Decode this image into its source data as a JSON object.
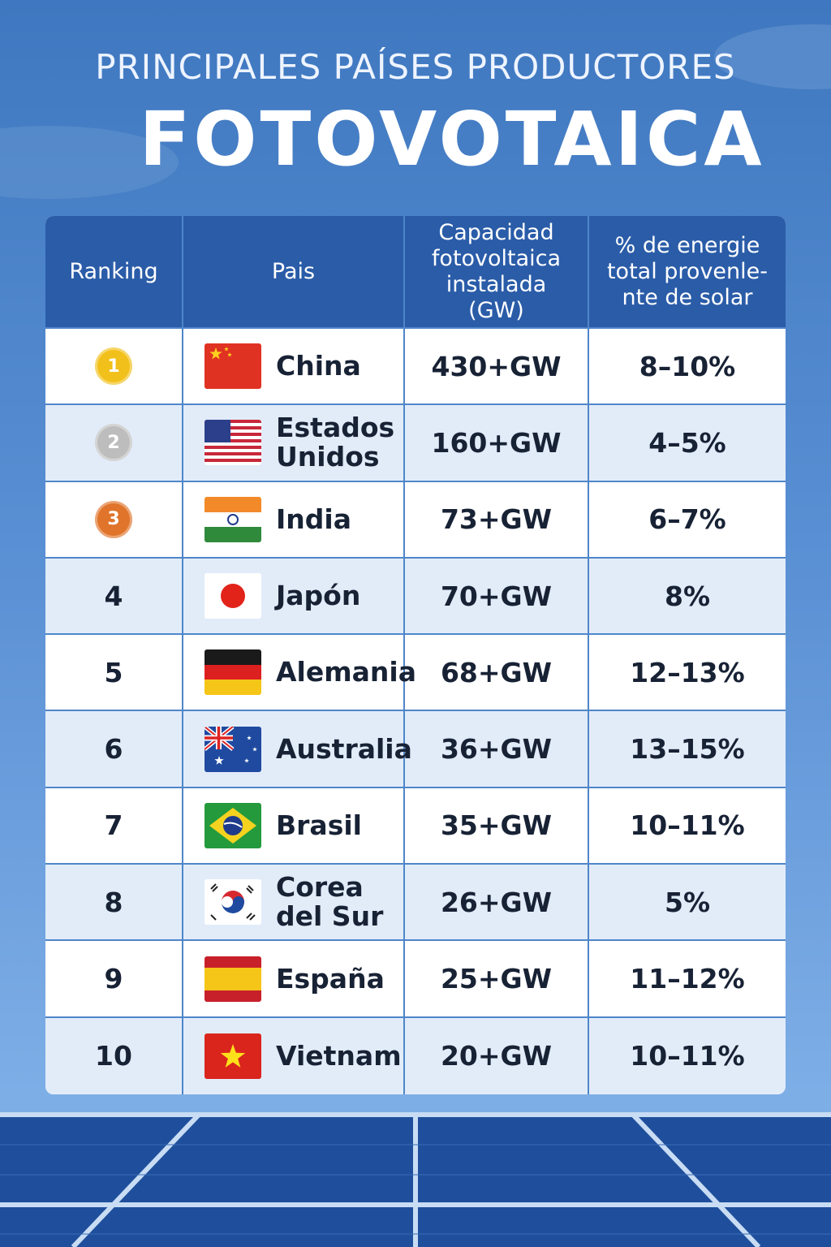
{
  "header": {
    "title": "PRINCIPALES PAÍSES PRODUCTORES",
    "subtitle": "FOTOVOTAICA"
  },
  "table": {
    "columns": [
      "Ranking",
      "Pais",
      "Capacidad fotovoltaica instalada (GW)",
      "% de energie total provenle- nte de solar"
    ],
    "rows": [
      [
        "1",
        "China",
        "430+GW",
        "8–10%"
      ],
      [
        "2",
        "Estados Unidos",
        "160+GW",
        "4–5%"
      ],
      [
        "3",
        "India",
        "73+GW",
        "6–7%"
      ],
      [
        "4",
        "Japón",
        "70+GW",
        "8%"
      ],
      [
        "5",
        "Alemania",
        "68+GW",
        "12–13%"
      ],
      [
        "6",
        "Australia",
        "36+GW",
        "13–15%"
      ],
      [
        "7",
        "Brasil",
        "35+GW",
        "10–11%"
      ],
      [
        "8",
        "Corea del Sur",
        "26+GW",
        "5%"
      ],
      [
        "9",
        "España",
        "25+GW",
        "11–12%"
      ],
      [
        "10",
        "Vietnam",
        "20+GW",
        "10–11%"
      ]
    ]
  }
}
